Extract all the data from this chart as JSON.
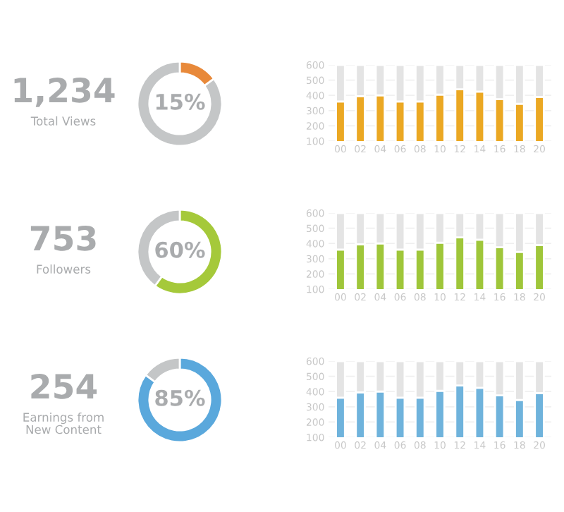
{
  "chart_data": [
    {
      "type": "other",
      "annotations": [
        "1,234",
        "Total Views"
      ]
    },
    {
      "type": "donut",
      "categories": [
        null,
        null
      ],
      "values": [
        15,
        85
      ],
      "colors": [
        "#e8893a",
        "#c4c6c7"
      ],
      "annotations": [
        "15%"
      ]
    },
    {
      "type": "bar",
      "stacked": true,
      "categories": [
        "00",
        "02",
        "04",
        "06",
        "08",
        "10",
        "12",
        "14",
        "16",
        "18",
        "20"
      ],
      "ylim": [
        100,
        600
      ],
      "yticks": [
        100,
        200,
        300,
        400,
        500,
        600
      ],
      "grid": "y",
      "series": [
        {
          "color": "#eba823",
          "values": [
            360,
            395,
            400,
            360,
            360,
            405,
            440,
            425,
            375,
            345,
            390
          ]
        },
        {
          "color": "#e4e4e4",
          "values": [
            240,
            205,
            200,
            240,
            240,
            195,
            160,
            175,
            225,
            255,
            210
          ]
        }
      ]
    },
    {
      "type": "other",
      "annotations": [
        "753",
        "Followers"
      ]
    },
    {
      "type": "donut",
      "categories": [
        null,
        null
      ],
      "values": [
        60,
        40
      ],
      "colors": [
        "#a5c93a",
        "#c4c6c7"
      ],
      "annotations": [
        "60%"
      ]
    },
    {
      "type": "bar",
      "stacked": true,
      "categories": [
        "00",
        "02",
        "04",
        "06",
        "08",
        "10",
        "12",
        "14",
        "16",
        "18",
        "20"
      ],
      "ylim": [
        100,
        600
      ],
      "yticks": [
        100,
        200,
        300,
        400,
        500,
        600
      ],
      "grid": "y",
      "series": [
        {
          "color": "#9fc63a",
          "values": [
            360,
            395,
            400,
            360,
            360,
            405,
            440,
            425,
            375,
            345,
            390
          ]
        },
        {
          "color": "#e4e4e4",
          "values": [
            240,
            205,
            200,
            240,
            240,
            195,
            160,
            175,
            225,
            255,
            210
          ]
        }
      ]
    },
    {
      "type": "other",
      "annotations": [
        "254",
        "Earnings from\nNew Content"
      ]
    },
    {
      "type": "donut",
      "categories": [
        null,
        null
      ],
      "values": [
        85,
        15
      ],
      "colors": [
        "#5aa8dc",
        "#c4c6c7"
      ],
      "annotations": [
        "85%"
      ]
    },
    {
      "type": "bar",
      "stacked": true,
      "categories": [
        "00",
        "02",
        "04",
        "06",
        "08",
        "10",
        "12",
        "14",
        "16",
        "18",
        "20"
      ],
      "ylim": [
        100,
        600
      ],
      "yticks": [
        100,
        200,
        300,
        400,
        500,
        600
      ],
      "grid": "y",
      "series": [
        {
          "color": "#6fb3dc",
          "values": [
            360,
            395,
            400,
            360,
            360,
            405,
            440,
            425,
            375,
            345,
            390
          ]
        },
        {
          "color": "#e4e4e4",
          "values": [
            240,
            205,
            200,
            240,
            240,
            195,
            160,
            175,
            225,
            255,
            210
          ]
        }
      ]
    }
  ]
}
